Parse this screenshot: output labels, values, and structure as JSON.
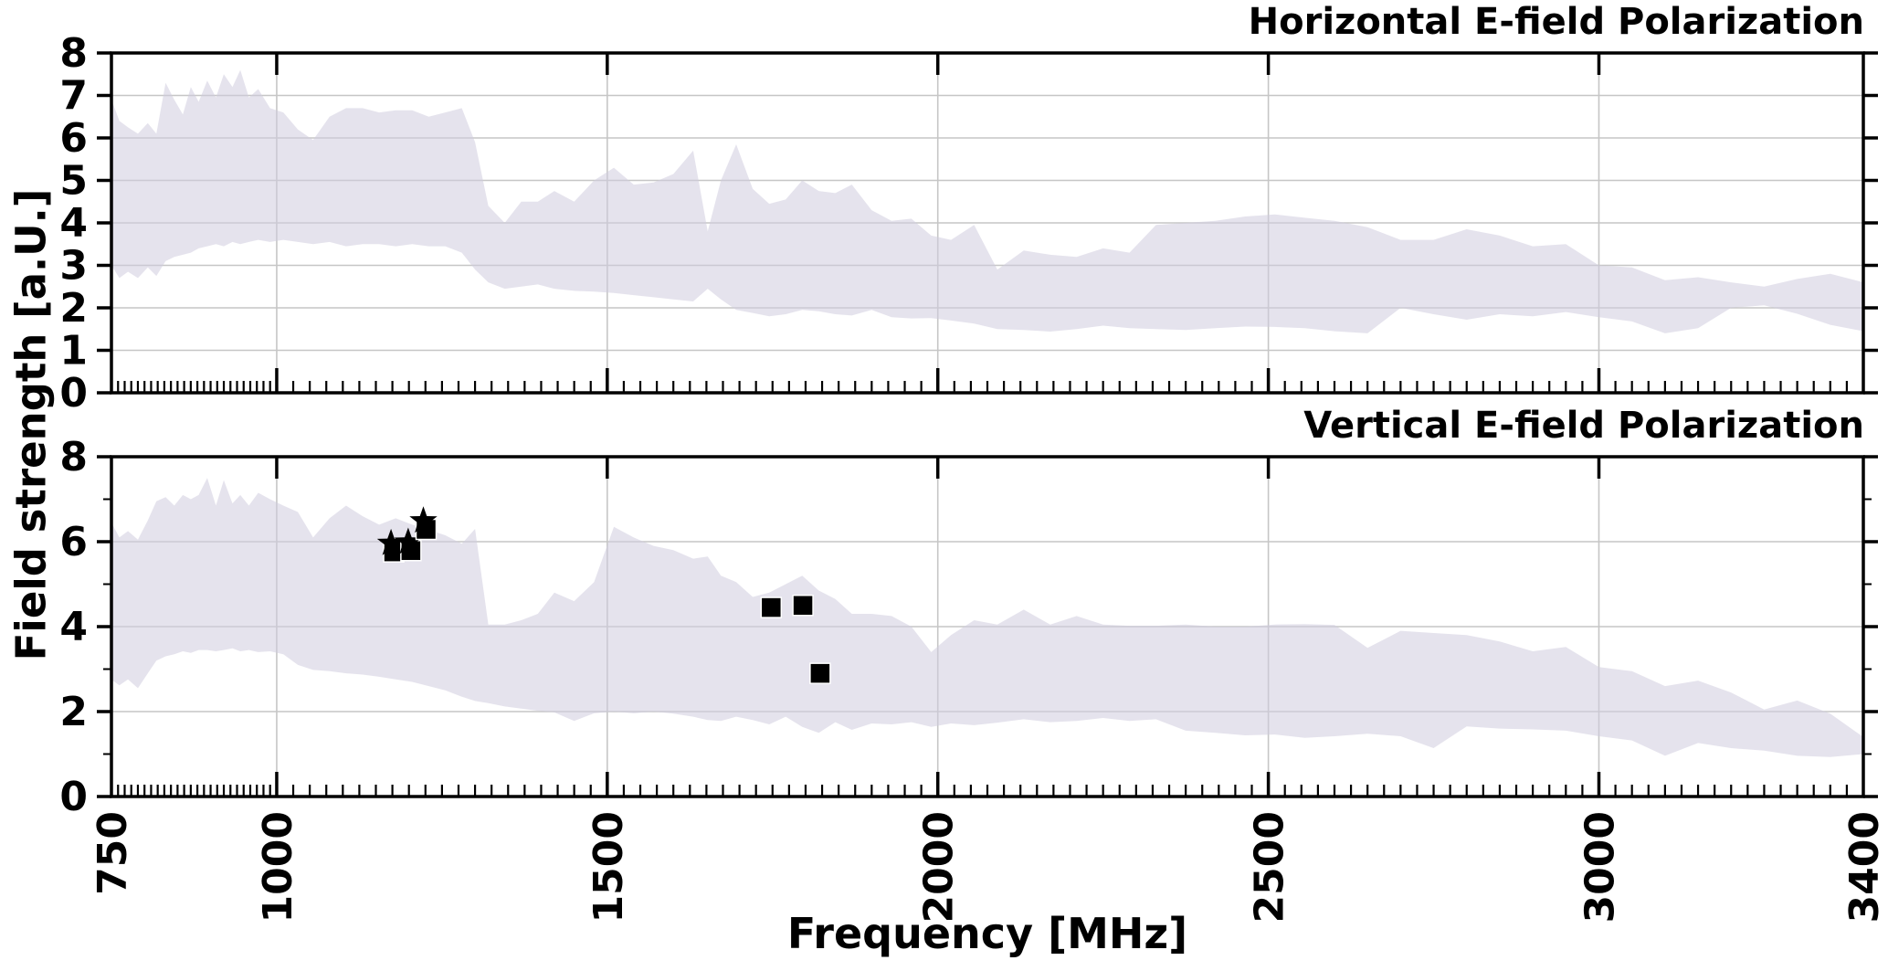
{
  "labels": {
    "ylabel": "Field strength [a.U.]",
    "xlabel": "Frequency [MHz]"
  },
  "colors": {
    "background": "#ffffff",
    "band_fill": "#cfccdf",
    "band_opacity": 0.55,
    "grid": "#c6c6c6",
    "spine": "#000000",
    "tick": "#000000",
    "text": "#000000",
    "marker": "#000000"
  },
  "axes": {
    "xlim": [
      750,
      3400
    ],
    "x_tick_values": [
      750,
      1000,
      1500,
      2000,
      2500,
      3000,
      3400
    ],
    "x_tick_labels": [
      "750",
      "1000",
      "1500",
      "2000",
      "2500",
      "3000",
      "3400"
    ],
    "x_grid_values": [
      1000,
      1500,
      2000,
      2500,
      3000
    ],
    "x_minor_step_below_1000": 10,
    "x_minor_step_above_1000": 25
  },
  "chart_data": [
    {
      "type": "area",
      "title": "Horizontal E-field Polarization",
      "ylabel": "Field strength [a.U.]",
      "ylim": [
        0,
        8
      ],
      "y_tick_values": [
        0,
        1,
        2,
        3,
        4,
        5,
        6,
        7,
        8
      ],
      "y_tick_labels": [
        "0",
        "1",
        "2",
        "3",
        "4",
        "5",
        "6",
        "7",
        "8"
      ],
      "y_minor_tick_values": [],
      "y_grid_values": [
        1,
        2,
        3,
        4,
        5,
        6,
        7
      ],
      "grid": true,
      "legend": "none",
      "x": [
        750,
        762,
        775,
        790,
        805,
        818,
        832,
        845,
        858,
        870,
        882,
        895,
        908,
        920,
        933,
        945,
        958,
        972,
        990,
        1010,
        1032,
        1055,
        1080,
        1105,
        1130,
        1155,
        1180,
        1205,
        1230,
        1255,
        1280,
        1300,
        1320,
        1345,
        1370,
        1395,
        1420,
        1450,
        1480,
        1510,
        1540,
        1570,
        1600,
        1630,
        1652,
        1672,
        1695,
        1720,
        1745,
        1770,
        1795,
        1820,
        1845,
        1870,
        1900,
        1930,
        1960,
        1990,
        2020,
        2055,
        2090,
        2130,
        2170,
        2210,
        2250,
        2290,
        2330,
        2375,
        2420,
        2465,
        2510,
        2555,
        2600,
        2650,
        2700,
        2750,
        2800,
        2850,
        2900,
        2950,
        3000,
        3050,
        3100,
        3150,
        3200,
        3250,
        3300,
        3350,
        3400
      ],
      "series": [
        {
          "name": "envelope upper",
          "values": [
            6.9,
            6.4,
            6.25,
            6.1,
            6.35,
            6.1,
            7.3,
            6.9,
            6.55,
            7.2,
            6.85,
            7.35,
            6.95,
            7.5,
            7.2,
            7.6,
            6.95,
            7.15,
            6.7,
            6.6,
            6.2,
            5.95,
            6.5,
            6.7,
            6.7,
            6.6,
            6.65,
            6.65,
            6.5,
            6.6,
            6.7,
            5.9,
            4.4,
            4.0,
            4.5,
            4.5,
            4.75,
            4.5,
            5.0,
            5.3,
            4.9,
            4.95,
            5.15,
            5.7,
            3.8,
            5.0,
            5.85,
            4.8,
            4.45,
            4.55,
            5.0,
            4.75,
            4.7,
            4.9,
            4.3,
            4.05,
            4.1,
            3.7,
            3.6,
            3.95,
            2.9,
            3.35,
            3.25,
            3.2,
            3.4,
            3.3,
            3.95,
            4.0,
            4.05,
            4.15,
            4.2,
            4.12,
            4.05,
            3.9,
            3.6,
            3.6,
            3.85,
            3.7,
            3.45,
            3.5,
            3.0,
            2.95,
            2.65,
            2.72,
            2.6,
            2.5,
            2.68,
            2.8,
            2.6
          ]
        },
        {
          "name": "envelope lower",
          "values": [
            3.0,
            2.7,
            2.85,
            2.7,
            2.95,
            2.75,
            3.1,
            3.2,
            3.25,
            3.3,
            3.4,
            3.45,
            3.5,
            3.45,
            3.55,
            3.5,
            3.55,
            3.6,
            3.55,
            3.6,
            3.55,
            3.5,
            3.55,
            3.45,
            3.5,
            3.5,
            3.45,
            3.5,
            3.45,
            3.45,
            3.3,
            2.9,
            2.6,
            2.45,
            2.5,
            2.55,
            2.45,
            2.4,
            2.38,
            2.35,
            2.3,
            2.25,
            2.2,
            2.15,
            2.45,
            2.2,
            1.95,
            1.88,
            1.8,
            1.85,
            1.95,
            1.92,
            1.85,
            1.82,
            1.95,
            1.78,
            1.75,
            1.76,
            1.7,
            1.63,
            1.5,
            1.48,
            1.44,
            1.5,
            1.58,
            1.52,
            1.5,
            1.48,
            1.52,
            1.56,
            1.55,
            1.52,
            1.45,
            1.4,
            2.0,
            1.85,
            1.72,
            1.85,
            1.8,
            1.9,
            1.78,
            1.68,
            1.4,
            1.52,
            2.0,
            2.06,
            1.86,
            1.6,
            1.45
          ]
        }
      ],
      "markers": []
    },
    {
      "type": "area",
      "title": "Vertical E-field Polarization",
      "ylabel": "Field strength [a.U.]",
      "ylim": [
        0,
        8
      ],
      "y_tick_values": [
        0,
        2,
        4,
        6,
        8
      ],
      "y_tick_labels": [
        "0",
        "2",
        "4",
        "6",
        "8"
      ],
      "y_minor_tick_values": [
        1,
        3,
        5,
        7
      ],
      "y_grid_values": [
        2,
        4,
        6
      ],
      "grid": true,
      "legend": "none",
      "x": [
        750,
        762,
        775,
        790,
        805,
        818,
        832,
        845,
        858,
        870,
        882,
        895,
        908,
        920,
        933,
        945,
        958,
        972,
        990,
        1010,
        1032,
        1055,
        1080,
        1105,
        1130,
        1155,
        1180,
        1205,
        1230,
        1255,
        1280,
        1300,
        1320,
        1345,
        1370,
        1395,
        1420,
        1450,
        1480,
        1510,
        1540,
        1570,
        1600,
        1630,
        1652,
        1672,
        1695,
        1720,
        1745,
        1770,
        1795,
        1820,
        1845,
        1870,
        1900,
        1930,
        1960,
        1990,
        2020,
        2055,
        2090,
        2130,
        2170,
        2210,
        2250,
        2290,
        2330,
        2375,
        2420,
        2465,
        2510,
        2555,
        2600,
        2650,
        2700,
        2750,
        2800,
        2850,
        2900,
        2950,
        3000,
        3050,
        3100,
        3150,
        3200,
        3250,
        3300,
        3350,
        3400
      ],
      "series": [
        {
          "name": "envelope upper",
          "values": [
            6.45,
            6.1,
            6.25,
            6.05,
            6.5,
            6.95,
            7.05,
            6.85,
            7.1,
            7.0,
            7.1,
            7.5,
            6.85,
            7.45,
            6.9,
            7.1,
            6.85,
            7.15,
            7.0,
            6.85,
            6.7,
            6.1,
            6.55,
            6.85,
            6.6,
            6.4,
            6.55,
            6.4,
            6.28,
            6.15,
            5.95,
            6.3,
            4.05,
            4.05,
            4.15,
            4.3,
            4.8,
            4.6,
            5.05,
            6.35,
            6.1,
            5.9,
            5.8,
            5.6,
            5.65,
            5.2,
            5.05,
            4.7,
            4.8,
            5.0,
            5.2,
            4.85,
            4.65,
            4.3,
            4.3,
            4.25,
            4.0,
            3.4,
            3.8,
            4.15,
            4.05,
            4.4,
            4.05,
            4.25,
            4.05,
            4.02,
            4.02,
            4.05,
            4.0,
            4.0,
            4.05,
            4.06,
            4.04,
            3.5,
            3.9,
            3.85,
            3.8,
            3.65,
            3.42,
            3.52,
            3.05,
            2.95,
            2.6,
            2.73,
            2.45,
            2.05,
            2.26,
            1.95,
            1.4
          ]
        },
        {
          "name": "envelope lower",
          "values": [
            2.75,
            2.62,
            2.76,
            2.55,
            2.9,
            3.2,
            3.3,
            3.35,
            3.42,
            3.38,
            3.45,
            3.45,
            3.42,
            3.45,
            3.49,
            3.42,
            3.45,
            3.4,
            3.42,
            3.35,
            3.1,
            2.98,
            2.95,
            2.9,
            2.87,
            2.82,
            2.76,
            2.7,
            2.6,
            2.5,
            2.35,
            2.25,
            2.2,
            2.12,
            2.07,
            2.02,
            1.98,
            1.78,
            1.96,
            2.0,
            1.96,
            2.0,
            1.95,
            1.88,
            1.8,
            1.78,
            1.88,
            1.8,
            1.7,
            1.88,
            1.64,
            1.5,
            1.75,
            1.57,
            1.72,
            1.7,
            1.75,
            1.64,
            1.72,
            1.68,
            1.74,
            1.82,
            1.75,
            1.78,
            1.85,
            1.78,
            1.82,
            1.55,
            1.5,
            1.44,
            1.46,
            1.38,
            1.42,
            1.48,
            1.42,
            1.14,
            1.65,
            1.6,
            1.58,
            1.55,
            1.42,
            1.32,
            0.96,
            1.26,
            1.14,
            1.08,
            0.96,
            0.93,
            1.0
          ]
        }
      ],
      "markers": [
        {
          "shape": "star-square",
          "points": [
            [
              1177,
              5.82
            ],
            [
              1203,
              5.85
            ],
            [
              1226,
              6.35
            ]
          ]
        },
        {
          "shape": "square",
          "points": [
            [
              1748,
              4.45
            ],
            [
              1796,
              4.5
            ],
            [
              1822,
              2.9
            ]
          ]
        }
      ]
    }
  ]
}
